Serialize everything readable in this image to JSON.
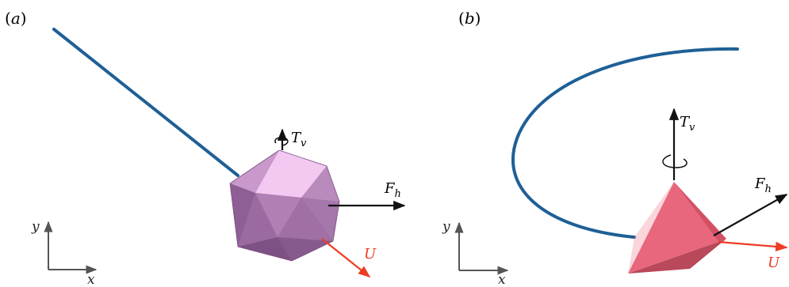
{
  "panels": [
    {
      "id": "a",
      "label_open": "(",
      "label_letter": "a",
      "label_close": ")",
      "vectors": {
        "torque": {
          "sym": "T",
          "sub": "v"
        },
        "force": {
          "sym": "F",
          "sub": "h"
        },
        "velocity": {
          "sym": "U"
        }
      },
      "axes": {
        "x": "x",
        "y": "y"
      },
      "body_shape": "icosahedron"
    },
    {
      "id": "b",
      "label_open": "(",
      "label_letter": "b",
      "label_close": ")",
      "vectors": {
        "torque": {
          "sym": "T",
          "sub": "v"
        },
        "force": {
          "sym": "F",
          "sub": "h"
        },
        "velocity": {
          "sym": "U"
        }
      },
      "axes": {
        "x": "x",
        "y": "y"
      },
      "body_shape": "tetrahedron"
    }
  ],
  "colors": {
    "trajectory": "#1f5f96",
    "velocity_arrow": "#ee3b24",
    "force_arrow": "#111111",
    "icosahedron": "#b07fb3",
    "tetrahedron": "#e86a7f"
  }
}
